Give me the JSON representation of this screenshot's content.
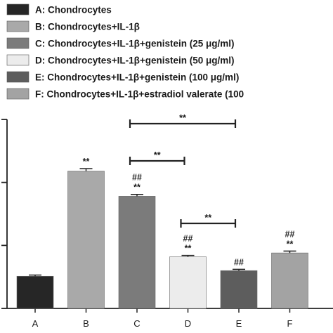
{
  "chart_data": {
    "type": "bar",
    "categories": [
      "A",
      "B",
      "C",
      "D",
      "E",
      "F"
    ],
    "values": [
      51,
      218,
      178,
      82,
      60,
      88
    ],
    "errors": [
      2,
      4,
      3,
      2,
      2,
      3
    ],
    "ylim": [
      0,
      300
    ],
    "colors": [
      "#262626",
      "#a9a9a9",
      "#7b7b7b",
      "#ececec",
      "#5d5d5d",
      "#a3a3a3"
    ],
    "legend": [
      "A: Chondrocytes",
      "B: Chondrocytes+IL-1β",
      "C: Chondrocytes+IL-1β+genistein (25 μg/ml)",
      "D: Chondrocytes+IL-1β+genistein (50 μg/ml)",
      "E: Chondrocytes+IL-1β+genistein (100 μg/ml)",
      "F: Chondrocytes+IL-1β+estradiol valerate (100"
    ],
    "bar_annotations": [
      {
        "category": "B",
        "lines": [
          "**"
        ]
      },
      {
        "category": "C",
        "lines": [
          "##",
          "**"
        ]
      },
      {
        "category": "D",
        "lines": [
          "##",
          "**"
        ]
      },
      {
        "category": "E",
        "lines": [
          "##"
        ]
      },
      {
        "category": "F",
        "lines": [
          "##",
          "**"
        ]
      }
    ],
    "brackets": [
      {
        "from": "C",
        "to": "E",
        "label": "**"
      },
      {
        "from": "C",
        "to": "D",
        "label": "**"
      },
      {
        "from": "D",
        "to": "E",
        "label": "**"
      }
    ]
  }
}
